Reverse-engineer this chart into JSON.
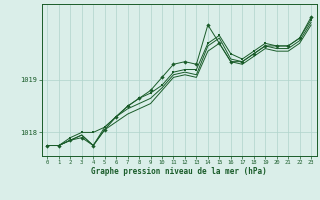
{
  "x": [
    0,
    1,
    2,
    3,
    4,
    5,
    6,
    7,
    8,
    9,
    10,
    11,
    12,
    13,
    14,
    15,
    16,
    17,
    18,
    19,
    20,
    21,
    22,
    23
  ],
  "line_jagged": [
    1017.75,
    1017.75,
    1017.85,
    1017.9,
    1017.75,
    1018.05,
    1018.3,
    1018.5,
    1018.65,
    1018.8,
    1019.05,
    1019.3,
    1019.35,
    1019.3,
    1020.05,
    1019.7,
    1019.35,
    1019.35,
    1019.5,
    1019.65,
    1019.65,
    1019.65,
    1019.8,
    1020.2
  ],
  "line_smooth1": [
    1017.75,
    1017.75,
    1017.85,
    1017.95,
    1017.75,
    1018.05,
    1018.2,
    1018.35,
    1018.45,
    1018.55,
    1018.8,
    1019.05,
    1019.1,
    1019.05,
    1019.55,
    1019.7,
    1019.35,
    1019.3,
    1019.45,
    1019.6,
    1019.55,
    1019.55,
    1019.7,
    1020.05
  ],
  "line_smooth2": [
    1017.75,
    1017.75,
    1017.85,
    1017.95,
    1017.75,
    1018.1,
    1018.3,
    1018.45,
    1018.55,
    1018.65,
    1018.85,
    1019.1,
    1019.15,
    1019.1,
    1019.65,
    1019.8,
    1019.4,
    1019.35,
    1019.5,
    1019.65,
    1019.6,
    1019.6,
    1019.75,
    1020.1
  ],
  "line_smooth3": [
    1017.75,
    1017.75,
    1017.9,
    1018.0,
    1018.0,
    1018.1,
    1018.3,
    1018.5,
    1018.65,
    1018.75,
    1018.9,
    1019.15,
    1019.2,
    1019.2,
    1019.7,
    1019.85,
    1019.5,
    1019.4,
    1019.55,
    1019.7,
    1019.65,
    1019.65,
    1019.8,
    1020.15
  ],
  "bg_color": "#daeee9",
  "grid_color": "#b0d4cc",
  "line_color": "#1a5c2a",
  "xlabel": "Graphe pression niveau de la mer (hPa)",
  "ylim_min": 1017.55,
  "ylim_max": 1020.45,
  "yticks": [
    1018,
    1019
  ],
  "xticks": [
    0,
    1,
    2,
    3,
    4,
    5,
    6,
    7,
    8,
    9,
    10,
    11,
    12,
    13,
    14,
    15,
    16,
    17,
    18,
    19,
    20,
    21,
    22,
    23
  ],
  "marker_jagged": "D",
  "marker_smooth": "s",
  "lw": 0.7
}
